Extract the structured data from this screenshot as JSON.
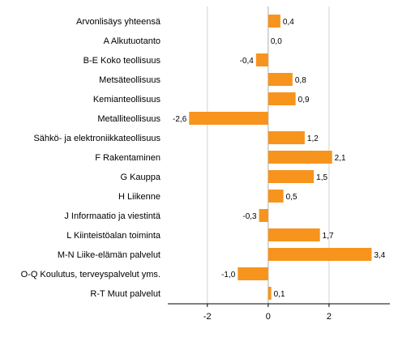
{
  "chart_data": {
    "type": "bar",
    "orientation": "horizontal",
    "categories": [
      "Arvonlisäys yhteensä",
      "A Alkutuotanto",
      "B-E Koko teollisuus",
      "Metsäteollisuus",
      "Kemianteollisuus",
      "Metalliteollisuus",
      "Sähkö- ja elektroniikkateollisuus",
      "F Rakentaminen",
      "G Kauppa",
      "H Liikenne",
      "J Informaatio ja viestintä",
      "L Kiinteistöalan toiminta",
      "M-N Liike-elämän palvelut",
      "O-Q Koulutus, terveyspalvelut yms.",
      "R-T Muut palvelut"
    ],
    "values": [
      0.4,
      0.0,
      -0.4,
      0.8,
      0.9,
      -2.6,
      1.2,
      2.1,
      1.5,
      0.5,
      -0.3,
      1.7,
      3.4,
      -1.0,
      0.1
    ],
    "value_labels": [
      "0,4",
      "0,0",
      "-0,4",
      "0,8",
      "0,9",
      "-2,6",
      "1,2",
      "2,1",
      "1,5",
      "0,5",
      "-0,3",
      "1,7",
      "3,4",
      "-1,0",
      "0,1"
    ],
    "x_ticks": [
      -2,
      0,
      2
    ],
    "x_tick_labels": [
      "-2",
      "0",
      "2"
    ],
    "xlim": [
      -3.3,
      4.0
    ],
    "gridlines": "vertical",
    "title": "",
    "xlabel": "",
    "ylabel": "",
    "bar_color": "#f7941d",
    "grid_color": "#d4d4d4"
  }
}
